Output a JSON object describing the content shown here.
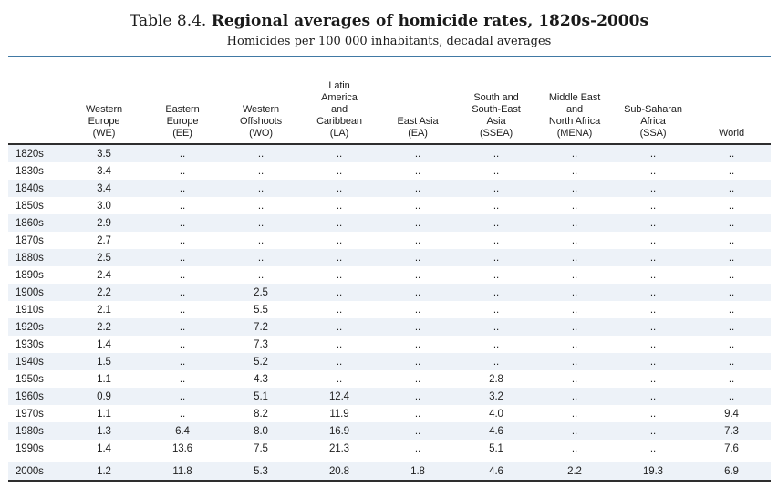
{
  "title": {
    "prefix": "Table 8.4.",
    "main": "Regional averages of homicide rates, 1820s-2000s",
    "subtitle": "Homicides per 100 000 inhabitants, decadal averages"
  },
  "colors": {
    "top_rule_blue": "#4179a4",
    "header_rule_dark": "#2e2e2e",
    "bottom_rule_dark": "#2e2e2e",
    "shaded_row": "#edf2f8",
    "text": "#1c1c1c"
  },
  "table": {
    "columns": [
      "",
      "Western\nEurope\n(WE)",
      "Eastern\nEurope\n(EE)",
      "Western\nOffshoots\n(WO)",
      "Latin\nAmerica\nand\nCaribbean\n(LA)",
      "East Asia\n(EA)",
      "South and\nSouth-East\nAsia\n(SSEA)",
      "Middle East\nand\nNorth Africa\n(MENA)",
      "Sub-Saharan\nAfrica\n(SSA)",
      "World"
    ],
    "rows": [
      [
        "1820s",
        "3.5",
        "..",
        "..",
        "..",
        "..",
        "..",
        "..",
        "..",
        ".."
      ],
      [
        "1830s",
        "3.4",
        "..",
        "..",
        "..",
        "..",
        "..",
        "..",
        "..",
        ".."
      ],
      [
        "1840s",
        "3.4",
        "..",
        "..",
        "..",
        "..",
        "..",
        "..",
        "..",
        ".."
      ],
      [
        "1850s",
        "3.0",
        "..",
        "..",
        "..",
        "..",
        "..",
        "..",
        "..",
        ".."
      ],
      [
        "1860s",
        "2.9",
        "..",
        "..",
        "..",
        "..",
        "..",
        "..",
        "..",
        ".."
      ],
      [
        "1870s",
        "2.7",
        "..",
        "..",
        "..",
        "..",
        "..",
        "..",
        "..",
        ".."
      ],
      [
        "1880s",
        "2.5",
        "..",
        "..",
        "..",
        "..",
        "..",
        "..",
        "..",
        ".."
      ],
      [
        "1890s",
        "2.4",
        "..",
        "..",
        "..",
        "..",
        "..",
        "..",
        "..",
        ".."
      ],
      [
        "1900s",
        "2.2",
        "..",
        "2.5",
        "..",
        "..",
        "..",
        "..",
        "..",
        ".."
      ],
      [
        "1910s",
        "2.1",
        "..",
        "5.5",
        "..",
        "..",
        "..",
        "..",
        "..",
        ".."
      ],
      [
        "1920s",
        "2.2",
        "..",
        "7.2",
        "..",
        "..",
        "..",
        "..",
        "..",
        ".."
      ],
      [
        "1930s",
        "1.4",
        "..",
        "7.3",
        "..",
        "..",
        "..",
        "..",
        "..",
        ".."
      ],
      [
        "1940s",
        "1.5",
        "..",
        "5.2",
        "..",
        "..",
        "..",
        "..",
        "..",
        ".."
      ],
      [
        "1950s",
        "1.1",
        "..",
        "4.3",
        "..",
        "..",
        "2.8",
        "..",
        "..",
        ".."
      ],
      [
        "1960s",
        "0.9",
        "..",
        "5.1",
        "12.4",
        "..",
        "3.2",
        "..",
        "..",
        ".."
      ],
      [
        "1970s",
        "1.1",
        "..",
        "8.2",
        "11.9",
        "..",
        "4.0",
        "..",
        "..",
        "9.4"
      ],
      [
        "1980s",
        "1.3",
        "6.4",
        "8.0",
        "16.9",
        "..",
        "4.6",
        "..",
        "..",
        "7.3"
      ],
      [
        "1990s",
        "1.4",
        "13.6",
        "7.5",
        "21.3",
        "..",
        "5.1",
        "..",
        "..",
        "7.6"
      ],
      [
        "2000s",
        "1.2",
        "11.8",
        "5.3",
        "20.8",
        "1.8",
        "4.6",
        "2.2",
        "19.3",
        "6.9"
      ]
    ]
  }
}
